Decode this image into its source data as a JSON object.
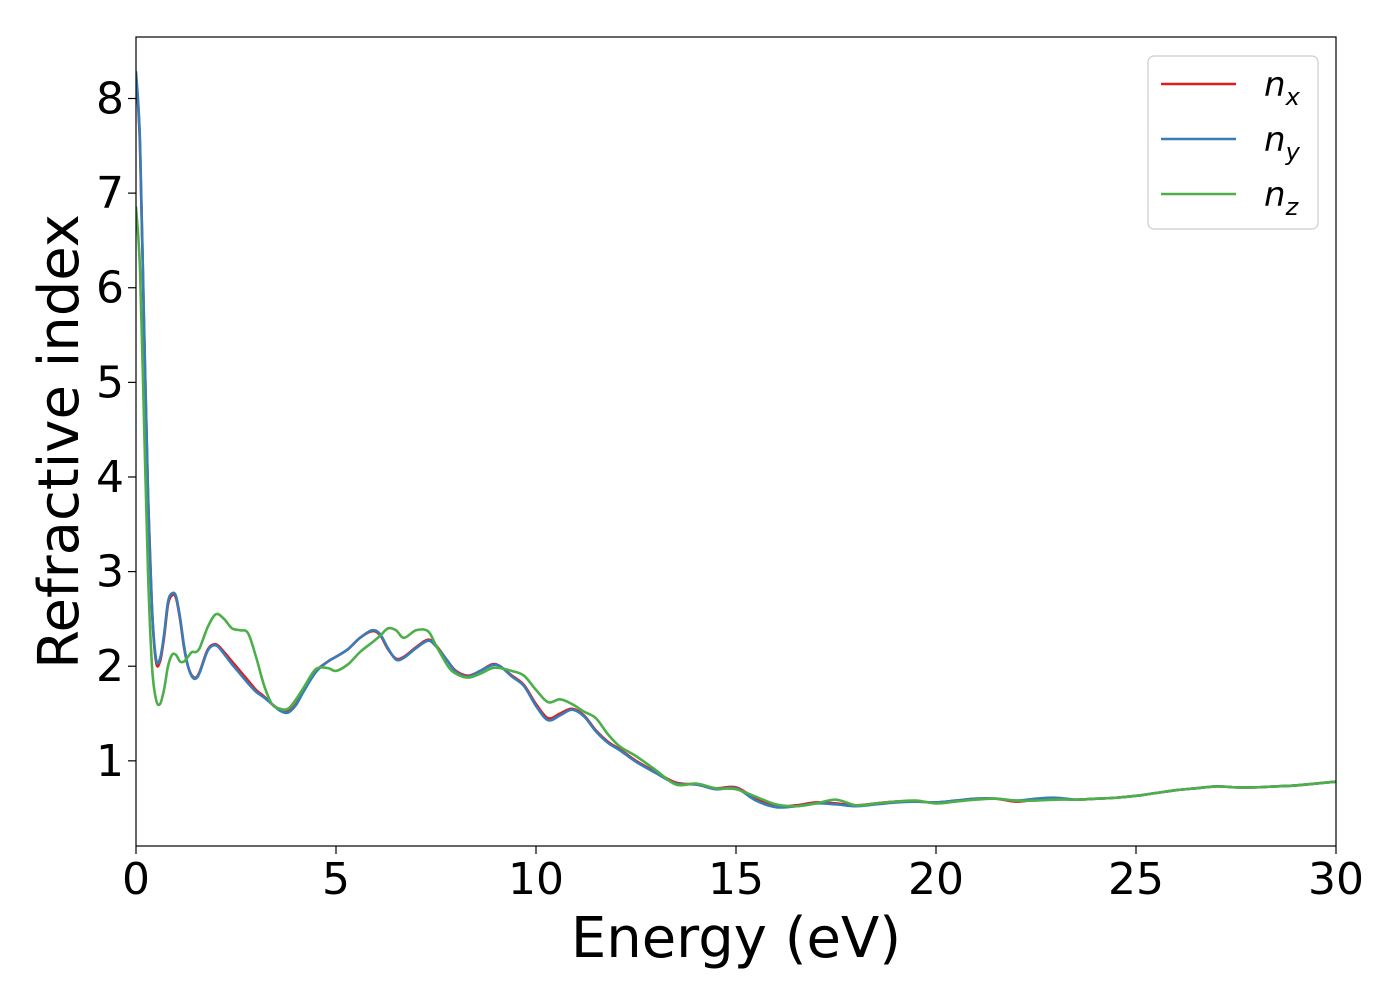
{
  "chart_data": {
    "type": "line",
    "title": "",
    "xlabel": "Energy (eV)",
    "ylabel": "Refractive index",
    "xlim": [
      0,
      30
    ],
    "ylim": [
      0.1,
      8.65
    ],
    "xticks": [
      0,
      5,
      10,
      15,
      20,
      25,
      30
    ],
    "yticks": [
      1,
      2,
      3,
      4,
      5,
      6,
      7,
      8
    ],
    "grid": false,
    "legend_position": "top-right",
    "series": [
      {
        "name": "n",
        "subscript": "x",
        "color": "#e41a1c",
        "x": [
          0,
          0.1,
          0.2,
          0.3,
          0.4,
          0.5,
          0.6,
          0.7,
          0.8,
          0.9,
          1.0,
          1.1,
          1.2,
          1.3,
          1.4,
          1.5,
          1.6,
          1.8,
          2.0,
          2.2,
          2.4,
          2.6,
          2.8,
          3.0,
          3.2,
          3.4,
          3.6,
          3.8,
          4.0,
          4.2,
          4.5,
          4.8,
          5.0,
          5.3,
          5.6,
          5.9,
          6.1,
          6.3,
          6.5,
          6.7,
          7.0,
          7.3,
          7.5,
          7.8,
          8.0,
          8.3,
          8.6,
          8.9,
          9.1,
          9.4,
          9.7,
          10.0,
          10.3,
          10.6,
          10.9,
          11.2,
          11.5,
          11.8,
          12.1,
          12.5,
          13.0,
          13.5,
          14.0,
          14.5,
          15.0,
          15.5,
          16.0,
          16.5,
          17.0,
          17.5,
          18.0,
          18.5,
          19.0,
          19.5,
          20.0,
          20.5,
          21.0,
          21.5,
          22.0,
          22.5,
          23.0,
          23.5,
          24.0,
          24.5,
          25.0,
          25.5,
          26.0,
          26.5,
          27.0,
          27.5,
          28.0,
          28.5,
          29.0,
          29.5,
          30.0
        ],
        "y": [
          8.25,
          7.5,
          5.6,
          3.8,
          2.6,
          2.05,
          2.05,
          2.3,
          2.65,
          2.75,
          2.72,
          2.5,
          2.2,
          2.0,
          1.9,
          1.88,
          1.95,
          2.18,
          2.23,
          2.15,
          2.05,
          1.95,
          1.85,
          1.75,
          1.68,
          1.6,
          1.54,
          1.52,
          1.6,
          1.75,
          1.95,
          2.05,
          2.1,
          2.18,
          2.3,
          2.37,
          2.33,
          2.18,
          2.08,
          2.1,
          2.2,
          2.28,
          2.22,
          2.05,
          1.95,
          1.9,
          1.95,
          2.02,
          2.0,
          1.9,
          1.8,
          1.6,
          1.45,
          1.5,
          1.55,
          1.48,
          1.32,
          1.2,
          1.12,
          1.0,
          0.88,
          0.77,
          0.75,
          0.71,
          0.72,
          0.6,
          0.52,
          0.53,
          0.56,
          0.55,
          0.53,
          0.55,
          0.57,
          0.57,
          0.56,
          0.58,
          0.6,
          0.6,
          0.57,
          0.59,
          0.6,
          0.59,
          0.6,
          0.61,
          0.63,
          0.66,
          0.69,
          0.71,
          0.73,
          0.72,
          0.72,
          0.73,
          0.74,
          0.76,
          0.78
        ]
      },
      {
        "name": "n",
        "subscript": "y",
        "color": "#377eb8",
        "x": [
          0,
          0.1,
          0.2,
          0.3,
          0.4,
          0.5,
          0.6,
          0.7,
          0.8,
          0.9,
          1.0,
          1.1,
          1.2,
          1.3,
          1.4,
          1.5,
          1.6,
          1.8,
          2.0,
          2.2,
          2.4,
          2.6,
          2.8,
          3.0,
          3.2,
          3.4,
          3.6,
          3.8,
          4.0,
          4.2,
          4.5,
          4.8,
          5.0,
          5.3,
          5.6,
          5.9,
          6.1,
          6.3,
          6.5,
          6.7,
          7.0,
          7.3,
          7.5,
          7.8,
          8.0,
          8.3,
          8.6,
          8.9,
          9.1,
          9.4,
          9.7,
          10.0,
          10.3,
          10.6,
          10.9,
          11.2,
          11.5,
          11.8,
          12.1,
          12.5,
          13.0,
          13.5,
          14.0,
          14.5,
          15.0,
          15.5,
          16.0,
          16.5,
          17.0,
          17.5,
          18.0,
          18.5,
          19.0,
          19.5,
          20.0,
          20.5,
          21.0,
          21.5,
          22.0,
          22.5,
          23.0,
          23.5,
          24.0,
          24.5,
          25.0,
          25.5,
          26.0,
          26.5,
          27.0,
          27.5,
          28.0,
          28.5,
          29.0,
          29.5,
          30.0
        ],
        "y": [
          8.28,
          7.55,
          5.65,
          3.85,
          2.62,
          2.08,
          2.08,
          2.33,
          2.68,
          2.77,
          2.74,
          2.52,
          2.22,
          2.0,
          1.89,
          1.87,
          1.94,
          2.17,
          2.22,
          2.13,
          2.02,
          1.92,
          1.82,
          1.73,
          1.67,
          1.6,
          1.53,
          1.51,
          1.59,
          1.74,
          1.94,
          2.05,
          2.1,
          2.18,
          2.3,
          2.38,
          2.34,
          2.19,
          2.07,
          2.09,
          2.19,
          2.27,
          2.21,
          2.05,
          1.94,
          1.89,
          1.95,
          2.01,
          2.0,
          1.89,
          1.79,
          1.58,
          1.43,
          1.48,
          1.54,
          1.47,
          1.31,
          1.19,
          1.11,
          0.99,
          0.87,
          0.76,
          0.75,
          0.7,
          0.71,
          0.58,
          0.51,
          0.52,
          0.55,
          0.54,
          0.52,
          0.54,
          0.56,
          0.57,
          0.56,
          0.58,
          0.6,
          0.6,
          0.58,
          0.6,
          0.61,
          0.59,
          0.6,
          0.61,
          0.63,
          0.66,
          0.69,
          0.71,
          0.73,
          0.72,
          0.72,
          0.73,
          0.74,
          0.76,
          0.78
        ]
      },
      {
        "name": "n",
        "subscript": "z",
        "color": "#4daf4a",
        "x": [
          0,
          0.1,
          0.2,
          0.3,
          0.4,
          0.5,
          0.6,
          0.7,
          0.8,
          0.9,
          1.0,
          1.1,
          1.2,
          1.3,
          1.4,
          1.5,
          1.6,
          1.8,
          2.0,
          2.2,
          2.4,
          2.6,
          2.8,
          3.0,
          3.2,
          3.4,
          3.6,
          3.8,
          4.0,
          4.2,
          4.5,
          4.8,
          5.0,
          5.3,
          5.6,
          5.9,
          6.1,
          6.3,
          6.5,
          6.7,
          7.0,
          7.3,
          7.5,
          7.8,
          8.0,
          8.3,
          8.6,
          8.9,
          9.1,
          9.4,
          9.7,
          10.0,
          10.3,
          10.6,
          10.9,
          11.2,
          11.5,
          11.8,
          12.1,
          12.5,
          13.0,
          13.5,
          14.0,
          14.5,
          15.0,
          15.5,
          16.0,
          16.5,
          17.0,
          17.5,
          18.0,
          18.5,
          19.0,
          19.5,
          20.0,
          20.5,
          21.0,
          21.5,
          22.0,
          22.5,
          23.0,
          23.5,
          24.0,
          24.5,
          25.0,
          25.5,
          26.0,
          26.5,
          27.0,
          27.5,
          28.0,
          28.5,
          29.0,
          29.5,
          30.0
        ],
        "y": [
          6.85,
          6.2,
          4.6,
          3.0,
          2.0,
          1.65,
          1.6,
          1.75,
          2.0,
          2.12,
          2.12,
          2.05,
          2.05,
          2.1,
          2.15,
          2.15,
          2.2,
          2.42,
          2.55,
          2.5,
          2.4,
          2.38,
          2.35,
          2.1,
          1.8,
          1.6,
          1.55,
          1.55,
          1.65,
          1.78,
          1.97,
          1.98,
          1.95,
          2.02,
          2.15,
          2.25,
          2.32,
          2.4,
          2.38,
          2.3,
          2.38,
          2.37,
          2.22,
          2.0,
          1.92,
          1.88,
          1.92,
          1.98,
          1.98,
          1.95,
          1.9,
          1.75,
          1.62,
          1.65,
          1.6,
          1.52,
          1.45,
          1.28,
          1.15,
          1.05,
          0.9,
          0.75,
          0.76,
          0.71,
          0.7,
          0.62,
          0.54,
          0.52,
          0.55,
          0.59,
          0.53,
          0.55,
          0.57,
          0.58,
          0.55,
          0.57,
          0.59,
          0.6,
          0.58,
          0.58,
          0.59,
          0.59,
          0.6,
          0.61,
          0.63,
          0.66,
          0.69,
          0.71,
          0.73,
          0.72,
          0.72,
          0.73,
          0.74,
          0.76,
          0.78
        ]
      }
    ]
  }
}
